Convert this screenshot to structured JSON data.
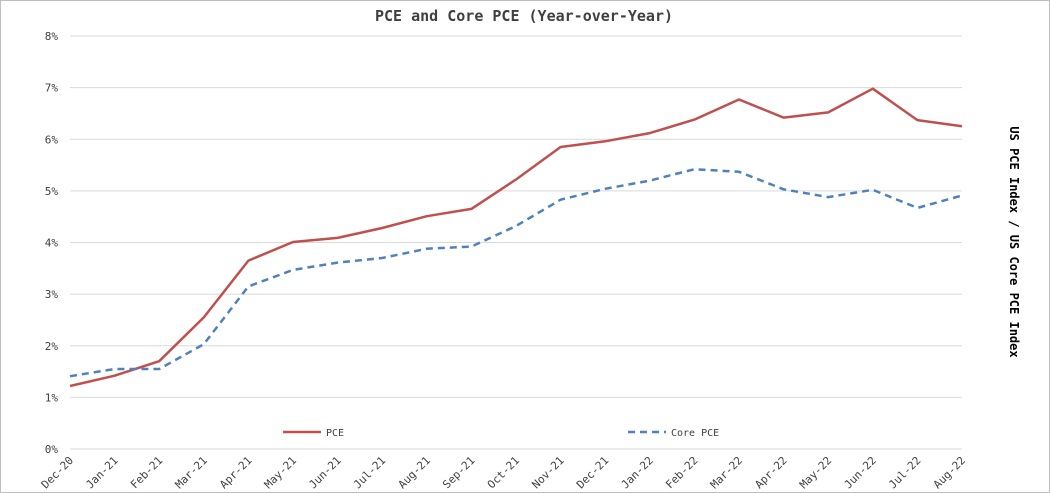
{
  "chart_data": {
    "type": "line",
    "title": "PCE and Core PCE (Year-over-Year)",
    "ylabel": "US PCE Index / US Core PCE Index",
    "xlabel": "",
    "ylim": [
      0,
      8
    ],
    "yticks": [
      "0%",
      "1%",
      "2%",
      "3%",
      "4%",
      "5%",
      "6%",
      "7%",
      "8%"
    ],
    "grid": true,
    "legend_placement": "bottom",
    "categories": [
      "Dec-20",
      "Jan-21",
      "Feb-21",
      "Mar-21",
      "Apr-21",
      "May-21",
      "Jun-21",
      "Jul-21",
      "Aug-21",
      "Sep-21",
      "Oct-21",
      "Nov-21",
      "Dec-21",
      "Jan-22",
      "Feb-22",
      "Mar-22",
      "Apr-22",
      "May-22",
      "Jun-22",
      "Jul-22",
      "Aug-22"
    ],
    "series": [
      {
        "name": "PCE",
        "color": "#c0504d",
        "style": "solid",
        "values": [
          1.22,
          1.42,
          1.7,
          2.55,
          3.65,
          4.01,
          4.09,
          4.28,
          4.51,
          4.65,
          5.22,
          5.85,
          5.96,
          6.12,
          6.38,
          6.77,
          6.42,
          6.52,
          6.98,
          6.37,
          6.25
        ]
      },
      {
        "name": "Core PCE",
        "color": "#4f81bd",
        "style": "dashed",
        "values": [
          1.41,
          1.55,
          1.55,
          2.03,
          3.15,
          3.47,
          3.61,
          3.7,
          3.88,
          3.92,
          4.32,
          4.83,
          5.04,
          5.2,
          5.42,
          5.37,
          5.03,
          4.88,
          5.02,
          4.67,
          4.91
        ]
      }
    ]
  }
}
